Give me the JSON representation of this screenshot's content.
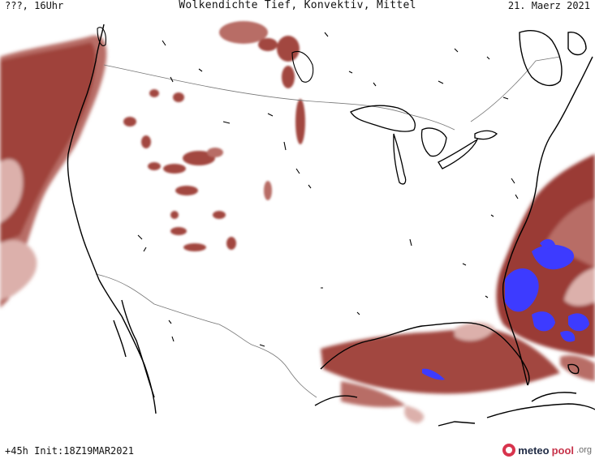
{
  "header": {
    "left": "???, 16Uhr",
    "title": "Wolkendichte  Tief, Konvektiv, Mittel",
    "date": "21. Maerz 2021"
  },
  "footer": {
    "run_info": "+45h Init:18Z19MAR2021",
    "brand_main": "meteo",
    "brand_accent": "pool",
    "brand_tld": ".org"
  },
  "colors": {
    "cloud_dark": "#9a3b34",
    "cloud_mid": "#b86d66",
    "cloud_light": "#dcb0ab",
    "convective": "#3d3bff",
    "coast": "#000000",
    "border": "#777777"
  }
}
